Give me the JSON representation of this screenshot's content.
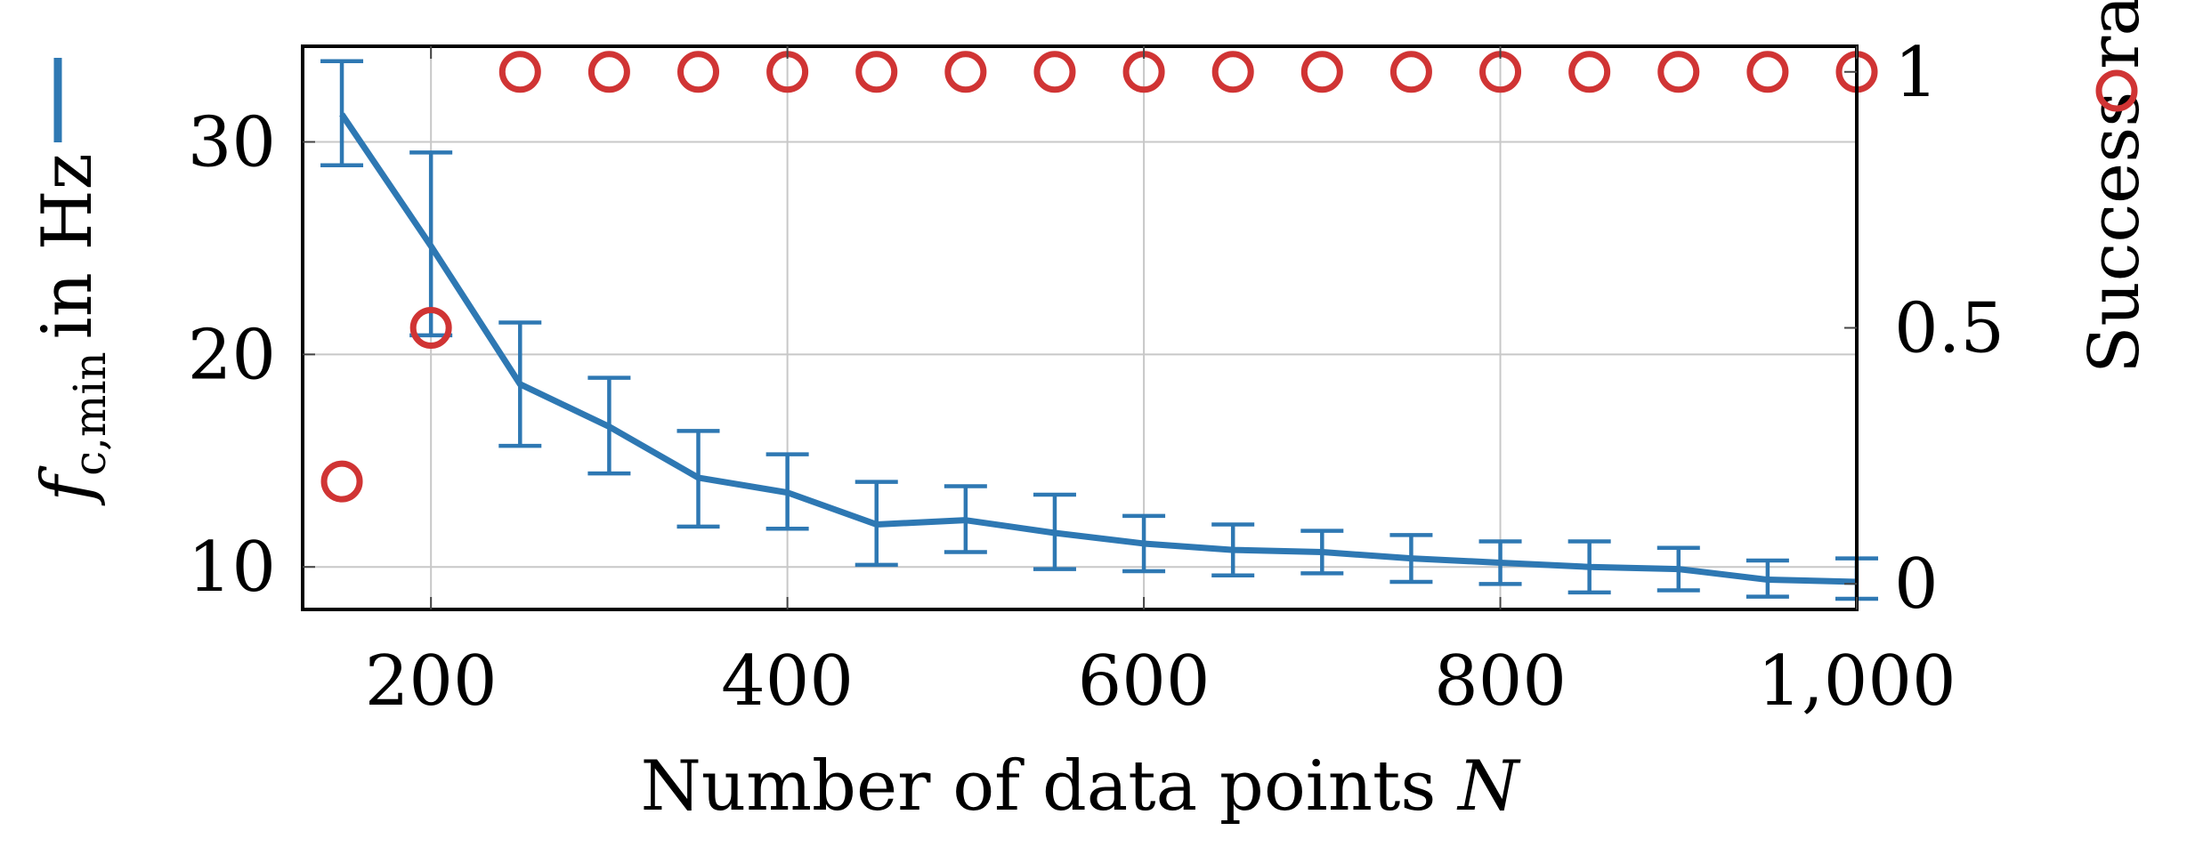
{
  "chart_data": {
    "type": "line",
    "xlabel": "Number of data points",
    "xlabel_symbol": "N",
    "ylabel": "in Hz",
    "ylabel_symbol": "f",
    "ylabel_subscript": "c,min",
    "y2label": "Success rate",
    "xlim": [
      128,
      1000
    ],
    "ylim": [
      8,
      34.5
    ],
    "y2lim": [
      -0.05,
      1.05
    ],
    "xticks": [
      200,
      400,
      600,
      800,
      1000
    ],
    "xtick_labels": [
      "200",
      "400",
      "600",
      "800",
      "1,000"
    ],
    "yticks": [
      10,
      20,
      30
    ],
    "ytick_labels": [
      "10",
      "20",
      "30"
    ],
    "y2ticks": [
      0,
      0.5,
      1
    ],
    "y2tick_labels": [
      "0",
      "0.5",
      "1"
    ],
    "grid": true,
    "x": [
      150,
      200,
      250,
      300,
      350,
      400,
      450,
      500,
      550,
      600,
      650,
      700,
      750,
      800,
      850,
      900,
      950,
      1000
    ],
    "series": [
      {
        "name": "",
        "axis": "left",
        "color": "#2e78b3",
        "values": [
          31.3,
          25.1,
          18.6,
          16.6,
          14.2,
          13.5,
          12.0,
          12.2,
          11.6,
          11.1,
          10.8,
          10.7,
          10.4,
          10.2,
          10.0,
          9.9,
          9.4,
          9.3
        ],
        "err_low": [
          28.9,
          20.9,
          15.7,
          14.4,
          11.9,
          11.8,
          10.1,
          10.7,
          9.9,
          9.8,
          9.6,
          9.7,
          9.3,
          9.2,
          8.8,
          8.9,
          8.6,
          8.5
        ],
        "err_high": [
          33.8,
          29.5,
          21.5,
          18.9,
          16.4,
          15.3,
          14.0,
          13.8,
          13.4,
          12.4,
          12.0,
          11.7,
          11.5,
          11.2,
          11.2,
          10.9,
          10.3,
          10.4
        ]
      },
      {
        "name": "",
        "axis": "right",
        "color": "#d03434",
        "marker": "circle",
        "values": [
          0.2,
          0.5,
          1,
          1,
          1,
          1,
          1,
          1,
          1,
          1,
          1,
          1,
          1,
          1,
          1,
          1,
          1,
          1
        ]
      }
    ]
  }
}
